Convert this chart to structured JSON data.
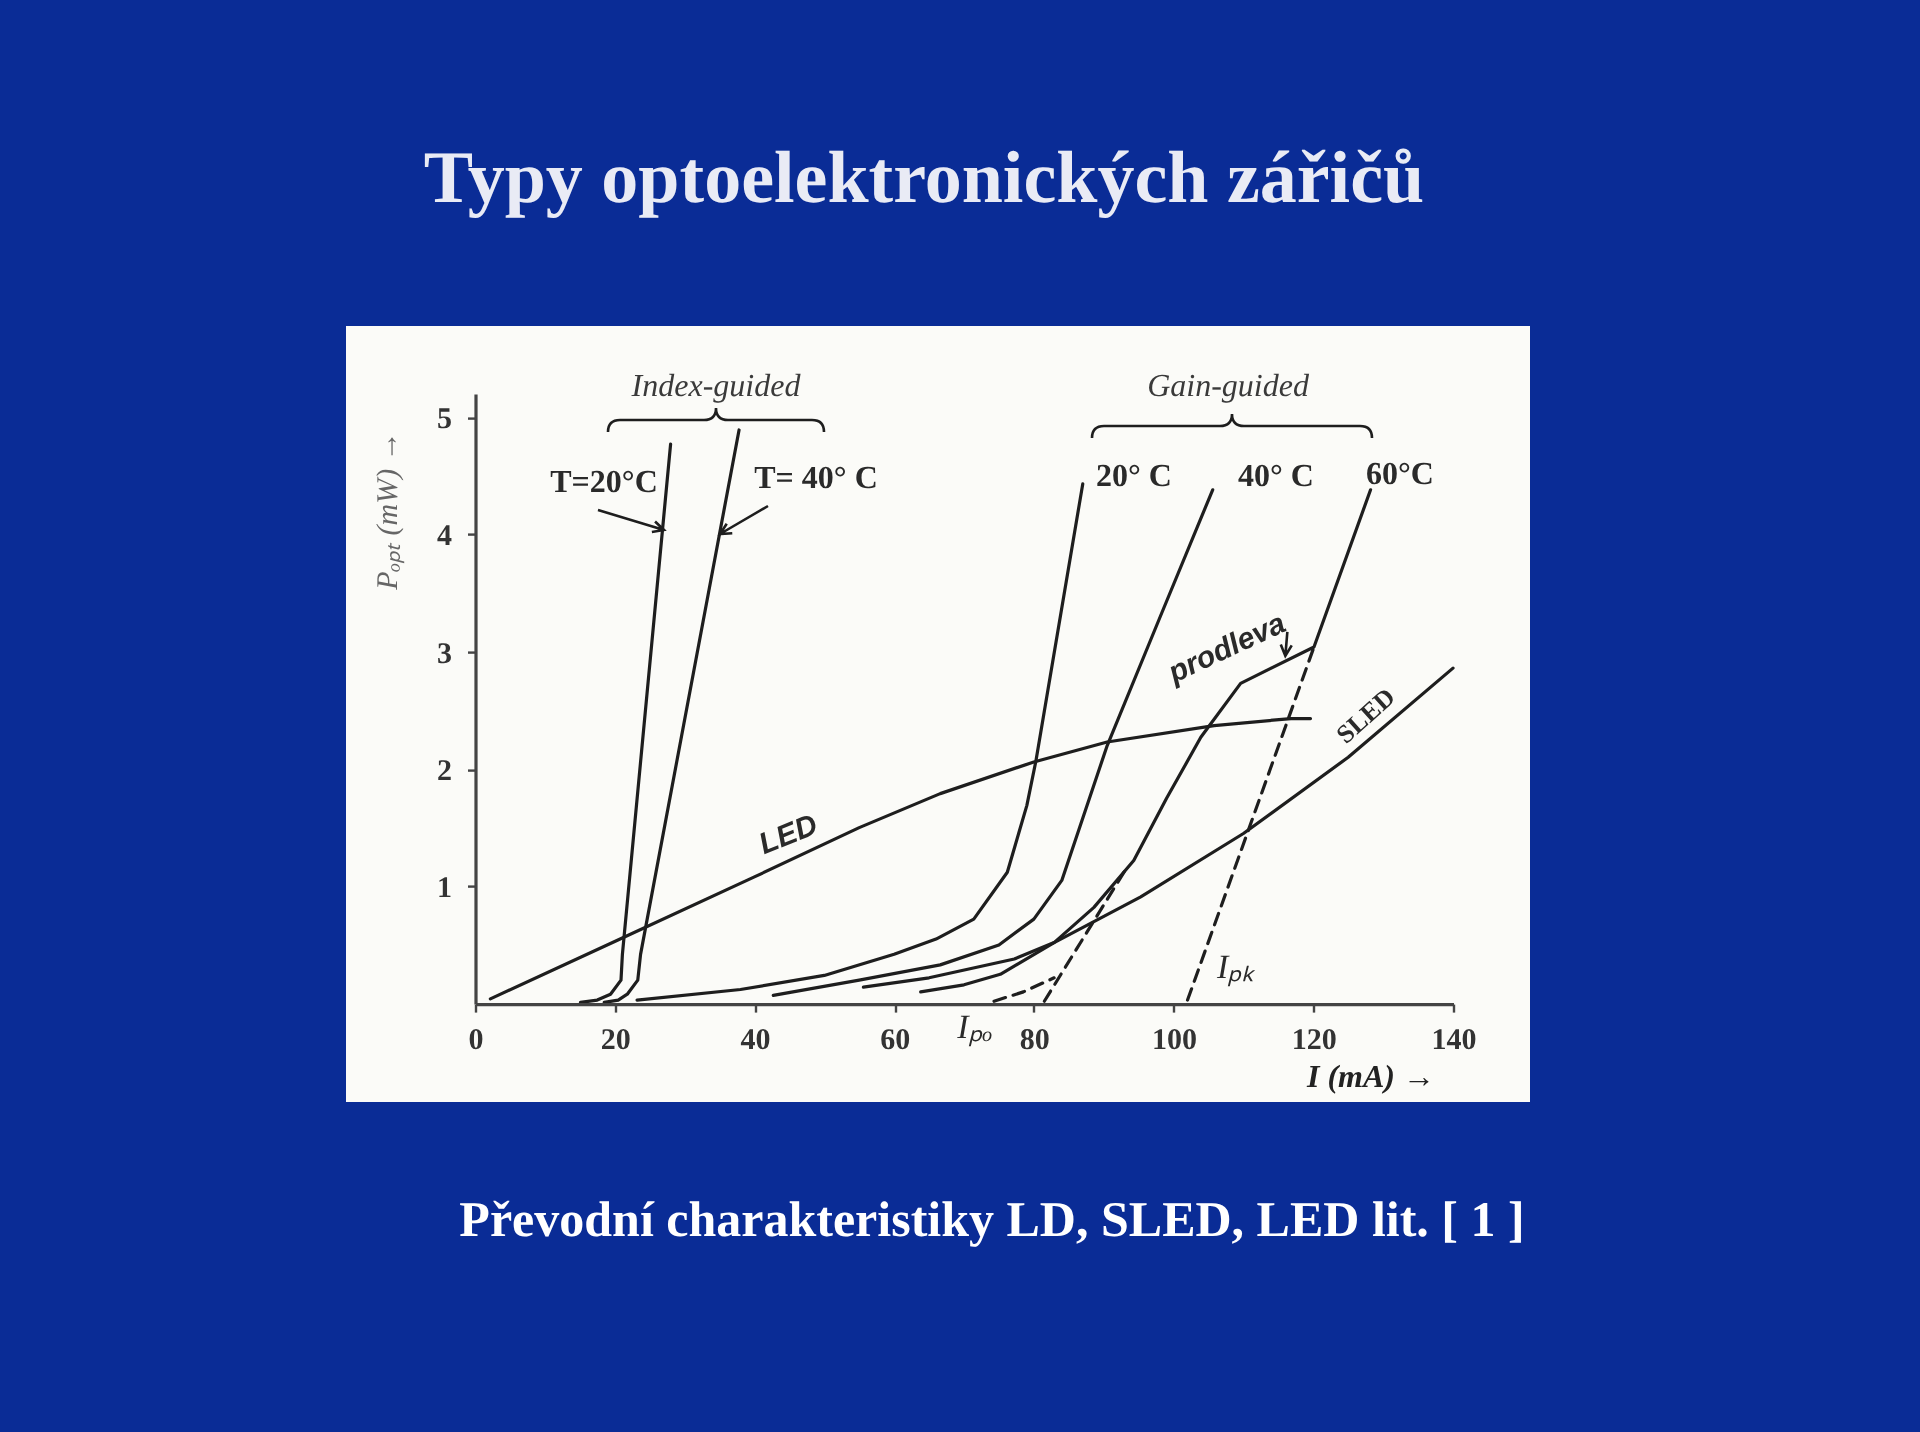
{
  "chart_data": {
    "type": "line",
    "title": "Typy optoelektronických zářičů",
    "xlabel": "I (mA) →",
    "ylabel": "Pₒₚₜ (mW) →",
    "xlim": [
      0,
      140
    ],
    "ylim": [
      0,
      5.2
    ],
    "xticks": [
      0,
      20,
      40,
      60,
      80,
      100,
      120,
      140
    ],
    "yticks": [
      1,
      2,
      3,
      4,
      5
    ],
    "grid": false,
    "line_style": "solid",
    "series": [
      {
        "name": "T=20°C",
        "color": "#1e1e1e",
        "x": [
          15.1,
          17.5,
          19.4,
          20.9,
          21.1,
          28.0
        ],
        "values": [
          0.01,
          0.03,
          0.08,
          0.2,
          0.42,
          4.77
        ]
      },
      {
        "name": "T= 40° C",
        "color": "#1e1e1e",
        "x": [
          18.5,
          20.5,
          21.8,
          23.3,
          23.7,
          37.8
        ],
        "values": [
          0.01,
          0.03,
          0.08,
          0.2,
          0.42,
          4.89
        ]
      },
      {
        "name": "LED",
        "color": "#1e1e1e",
        "x": [
          2.2,
          20,
          40,
          55,
          66.6,
          80,
          90.5,
          105.8,
          116.8,
          119.6
        ],
        "values": [
          0.04,
          0.53,
          1.08,
          1.5,
          1.79,
          2.06,
          2.23,
          2.37,
          2.43,
          2.43
        ]
      },
      {
        "name": "20° C",
        "color": "#1e1e1e",
        "x": [
          23.2,
          38,
          50,
          60,
          66,
          71.4,
          76.2,
          79,
          80.3,
          87
        ],
        "values": [
          0.03,
          0.12,
          0.24,
          0.42,
          0.55,
          0.72,
          1.12,
          1.69,
          2.07,
          4.43
        ]
      },
      {
        "name": "40° C",
        "color": "#1e1e1e",
        "x": [
          42.7,
          55,
          66.6,
          75,
          80,
          84,
          90.5,
          98.1,
          105.6
        ],
        "values": [
          0.07,
          0.2,
          0.33,
          0.5,
          0.72,
          1.05,
          2.2,
          3.3,
          4.38
        ]
      },
      {
        "name": "60°C",
        "color": "#1e1e1e",
        "x": [
          63.8,
          70,
          75.2,
          82.9,
          88.6,
          94.3,
          99,
          103.9,
          109.6,
          120.1,
          128.2
        ],
        "values": [
          0.1,
          0.16,
          0.25,
          0.52,
          0.82,
          1.22,
          1.75,
          2.27,
          2.73,
          3.04,
          4.38
        ]
      },
      {
        "name": "SLED",
        "color": "#1e1e1e",
        "x": [
          55.6,
          65,
          77.2,
          82.9,
          95.3,
          110,
          125,
          140
        ],
        "values": [
          0.14,
          0.22,
          0.38,
          0.52,
          0.91,
          1.45,
          2.1,
          2.86
        ]
      },
      {
        "color": "#1e1e1e",
        "line_style": "dashed",
        "x": [
          74.3,
          78.5,
          82.9
        ],
        "values": [
          0.02,
          0.1,
          0.22
        ]
      },
      {
        "color": "#1e1e1e",
        "line_style": "dashed",
        "x": [
          81.5,
          93
        ],
        "values": [
          0.02,
          1.13
        ]
      },
      {
        "color": "#1e1e1e",
        "line_style": "dashed",
        "x": [
          102,
          120.1
        ],
        "values": [
          0.03,
          3.04
        ]
      }
    ],
    "annotations": [
      "Index-guided",
      "Gain-guided",
      {
        "text": "prodleva",
        "x": 116,
        "y": 2.93
      },
      {
        "text": "Iₚₖ",
        "x": 102,
        "y": 0
      },
      {
        "text": "Iₚₒ",
        "x": 81,
        "y": 0
      },
      "Převodní charakteristiky LD, SLED, LED lit. [ 1 ]"
    ]
  }
}
